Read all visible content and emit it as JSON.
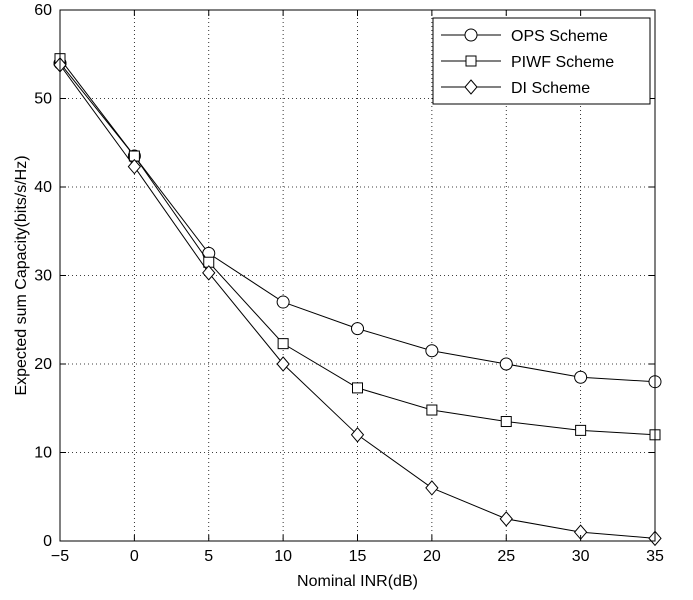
{
  "chart_data": {
    "type": "line",
    "title": "",
    "xlabel": "Nominal INR(dB)",
    "ylabel": "Expected sum Capacity(bits/s/Hz)",
    "xlim": [
      -5,
      35
    ],
    "ylim": [
      0,
      60
    ],
    "xticks": [
      -5,
      0,
      5,
      10,
      15,
      20,
      25,
      30,
      35
    ],
    "yticks": [
      0,
      10,
      20,
      30,
      40,
      50,
      60
    ],
    "xtick_labels": [
      "−5",
      "0",
      "5",
      "10",
      "15",
      "20",
      "25",
      "30",
      "35"
    ],
    "ytick_labels": [
      "0",
      "10",
      "20",
      "30",
      "40",
      "50",
      "60"
    ],
    "grid": true,
    "legend_position": "top-right",
    "x": [
      -5,
      0,
      5,
      10,
      15,
      20,
      25,
      30,
      35
    ],
    "series": [
      {
        "name": "OPS Scheme",
        "marker": "circle",
        "color": "#000000",
        "values": [
          54.0,
          43.5,
          32.5,
          27.0,
          24.0,
          21.5,
          20.0,
          18.5,
          18.0
        ]
      },
      {
        "name": "PIWF Scheme",
        "marker": "square",
        "color": "#000000",
        "values": [
          54.5,
          43.5,
          31.5,
          22.3,
          17.3,
          14.8,
          13.5,
          12.5,
          12.0
        ]
      },
      {
        "name": "DI Scheme",
        "marker": "diamond",
        "color": "#000000",
        "values": [
          53.8,
          42.3,
          30.3,
          20.0,
          12.0,
          6.0,
          2.5,
          1.0,
          0.3
        ]
      }
    ]
  }
}
